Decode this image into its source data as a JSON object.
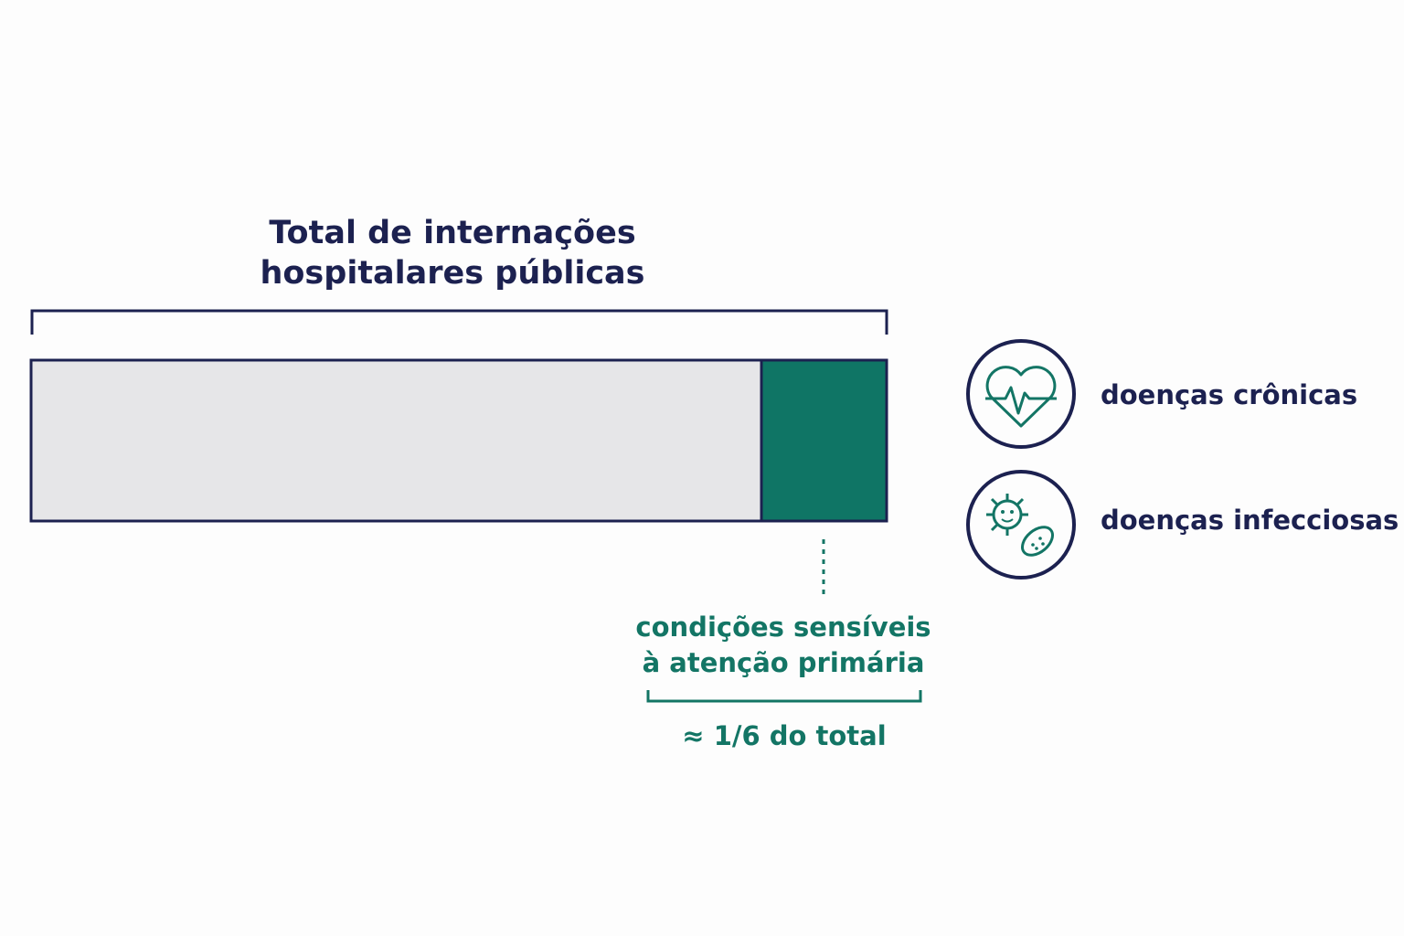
{
  "bar": {
    "title_lines": [
      "Total de internações",
      "hospitalares públicas"
    ],
    "highlight_label_lines": [
      "condições sensíveis",
      "à atenção primária"
    ],
    "highlight_share": "≈ 1/6 do total"
  },
  "legend": {
    "items": [
      {
        "label": "doenças crônicas"
      },
      {
        "label": "doenças infecciosas"
      }
    ]
  }
}
